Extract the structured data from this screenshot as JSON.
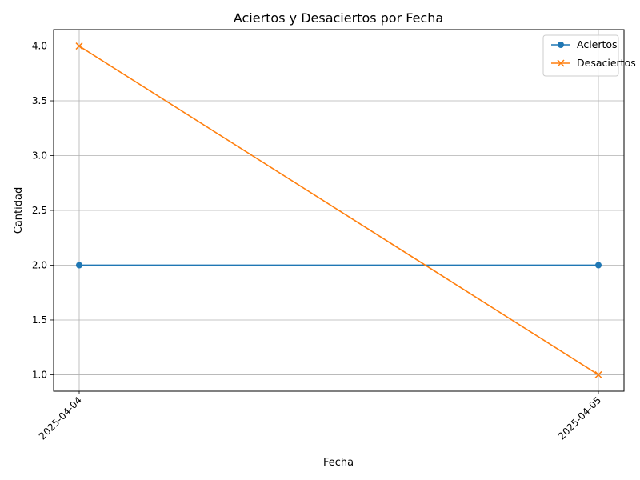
{
  "chart_data": {
    "type": "line",
    "title": "Aciertos y Desaciertos por Fecha",
    "xlabel": "Fecha",
    "ylabel": "Cantidad",
    "x": [
      "2025-04-04",
      "2025-04-05"
    ],
    "ylim": [
      0.85,
      4.15
    ],
    "yticks": [
      "1.0",
      "1.5",
      "2.0",
      "2.5",
      "3.0",
      "3.5",
      "4.0"
    ],
    "grid": true,
    "legend_position": "top-right",
    "series": [
      {
        "name": "Aciertos",
        "values": [
          2,
          2
        ],
        "color": "#1f77b4",
        "marker": "circle"
      },
      {
        "name": "Desaciertos",
        "values": [
          4,
          1
        ],
        "color": "#ff7f0e",
        "marker": "x"
      }
    ]
  }
}
